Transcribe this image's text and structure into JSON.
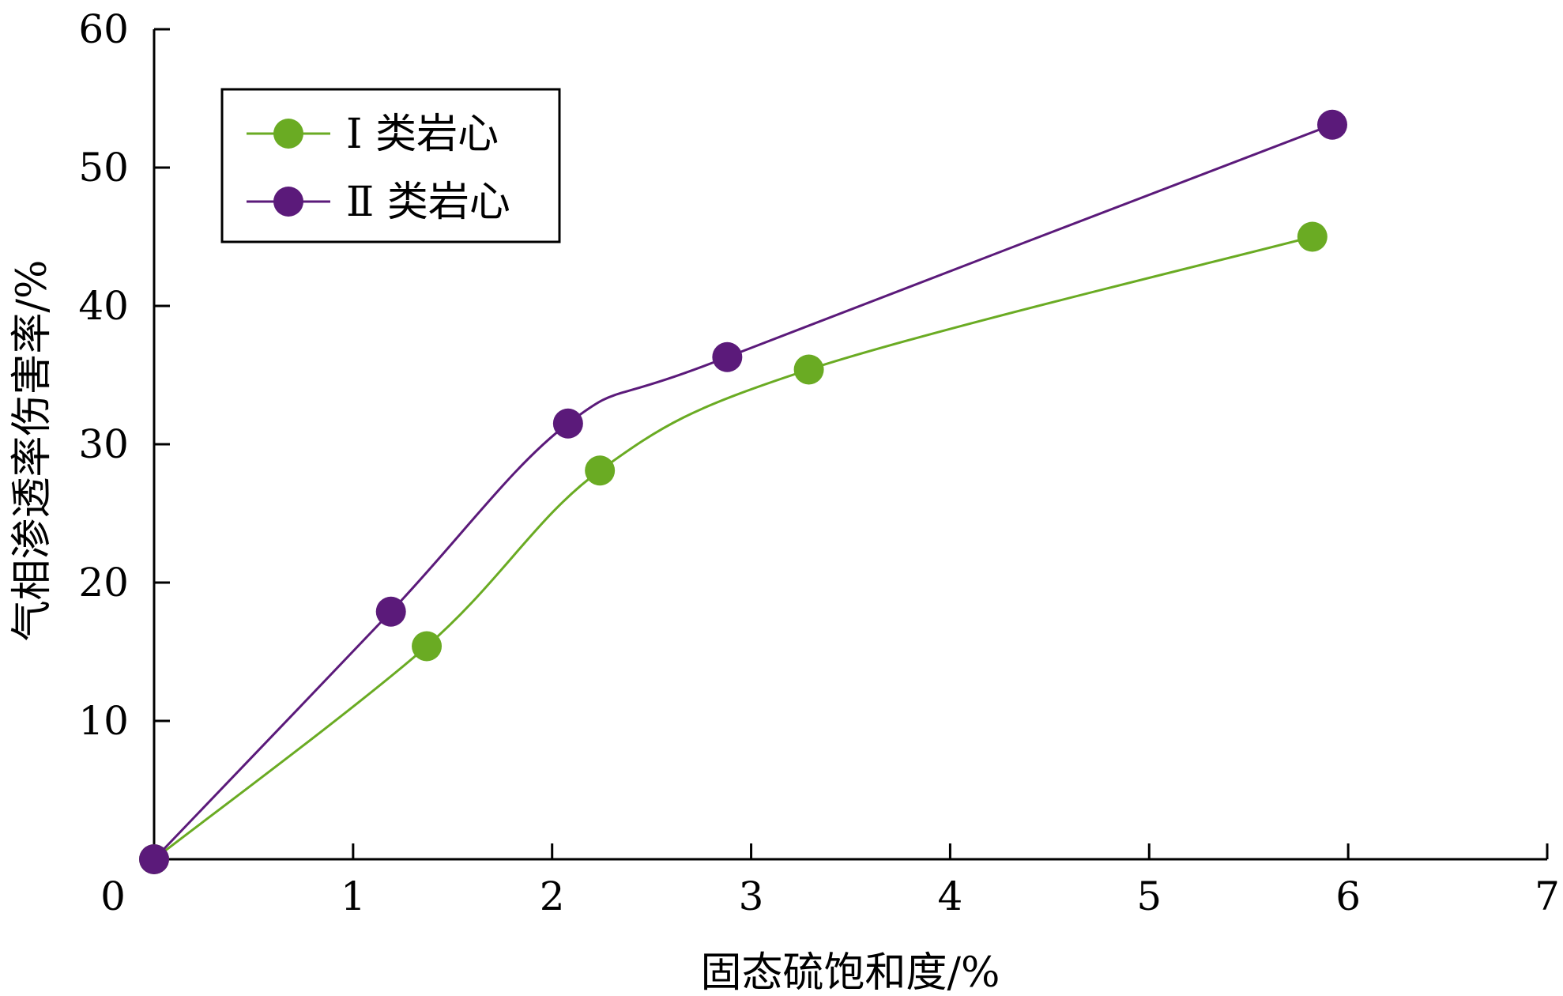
{
  "chart_data": {
    "type": "line",
    "xlabel": "固态硫饱和度/%",
    "ylabel": "气相渗透率伤害率/%",
    "xlim": [
      0,
      7
    ],
    "ylim": [
      0,
      60
    ],
    "xticks": [
      "0",
      "1",
      "2",
      "3",
      "4",
      "5",
      "6",
      "7"
    ],
    "yticks": [
      "10",
      "20",
      "30",
      "40",
      "50",
      "60"
    ],
    "grid": false,
    "legend_position": "top-left",
    "series": [
      {
        "name": "Ⅰ 类岩心",
        "color": "#6aab23",
        "x": [
          0.0,
          1.37,
          2.24,
          3.29,
          5.82
        ],
        "y": [
          0.0,
          15.4,
          28.1,
          35.4,
          45.0
        ]
      },
      {
        "name": "Ⅱ 类岩心",
        "color": "#5b1a7a",
        "x": [
          0.0,
          1.19,
          2.08,
          2.88,
          5.92
        ],
        "y": [
          0.0,
          17.9,
          31.5,
          36.3,
          53.1
        ]
      }
    ]
  }
}
